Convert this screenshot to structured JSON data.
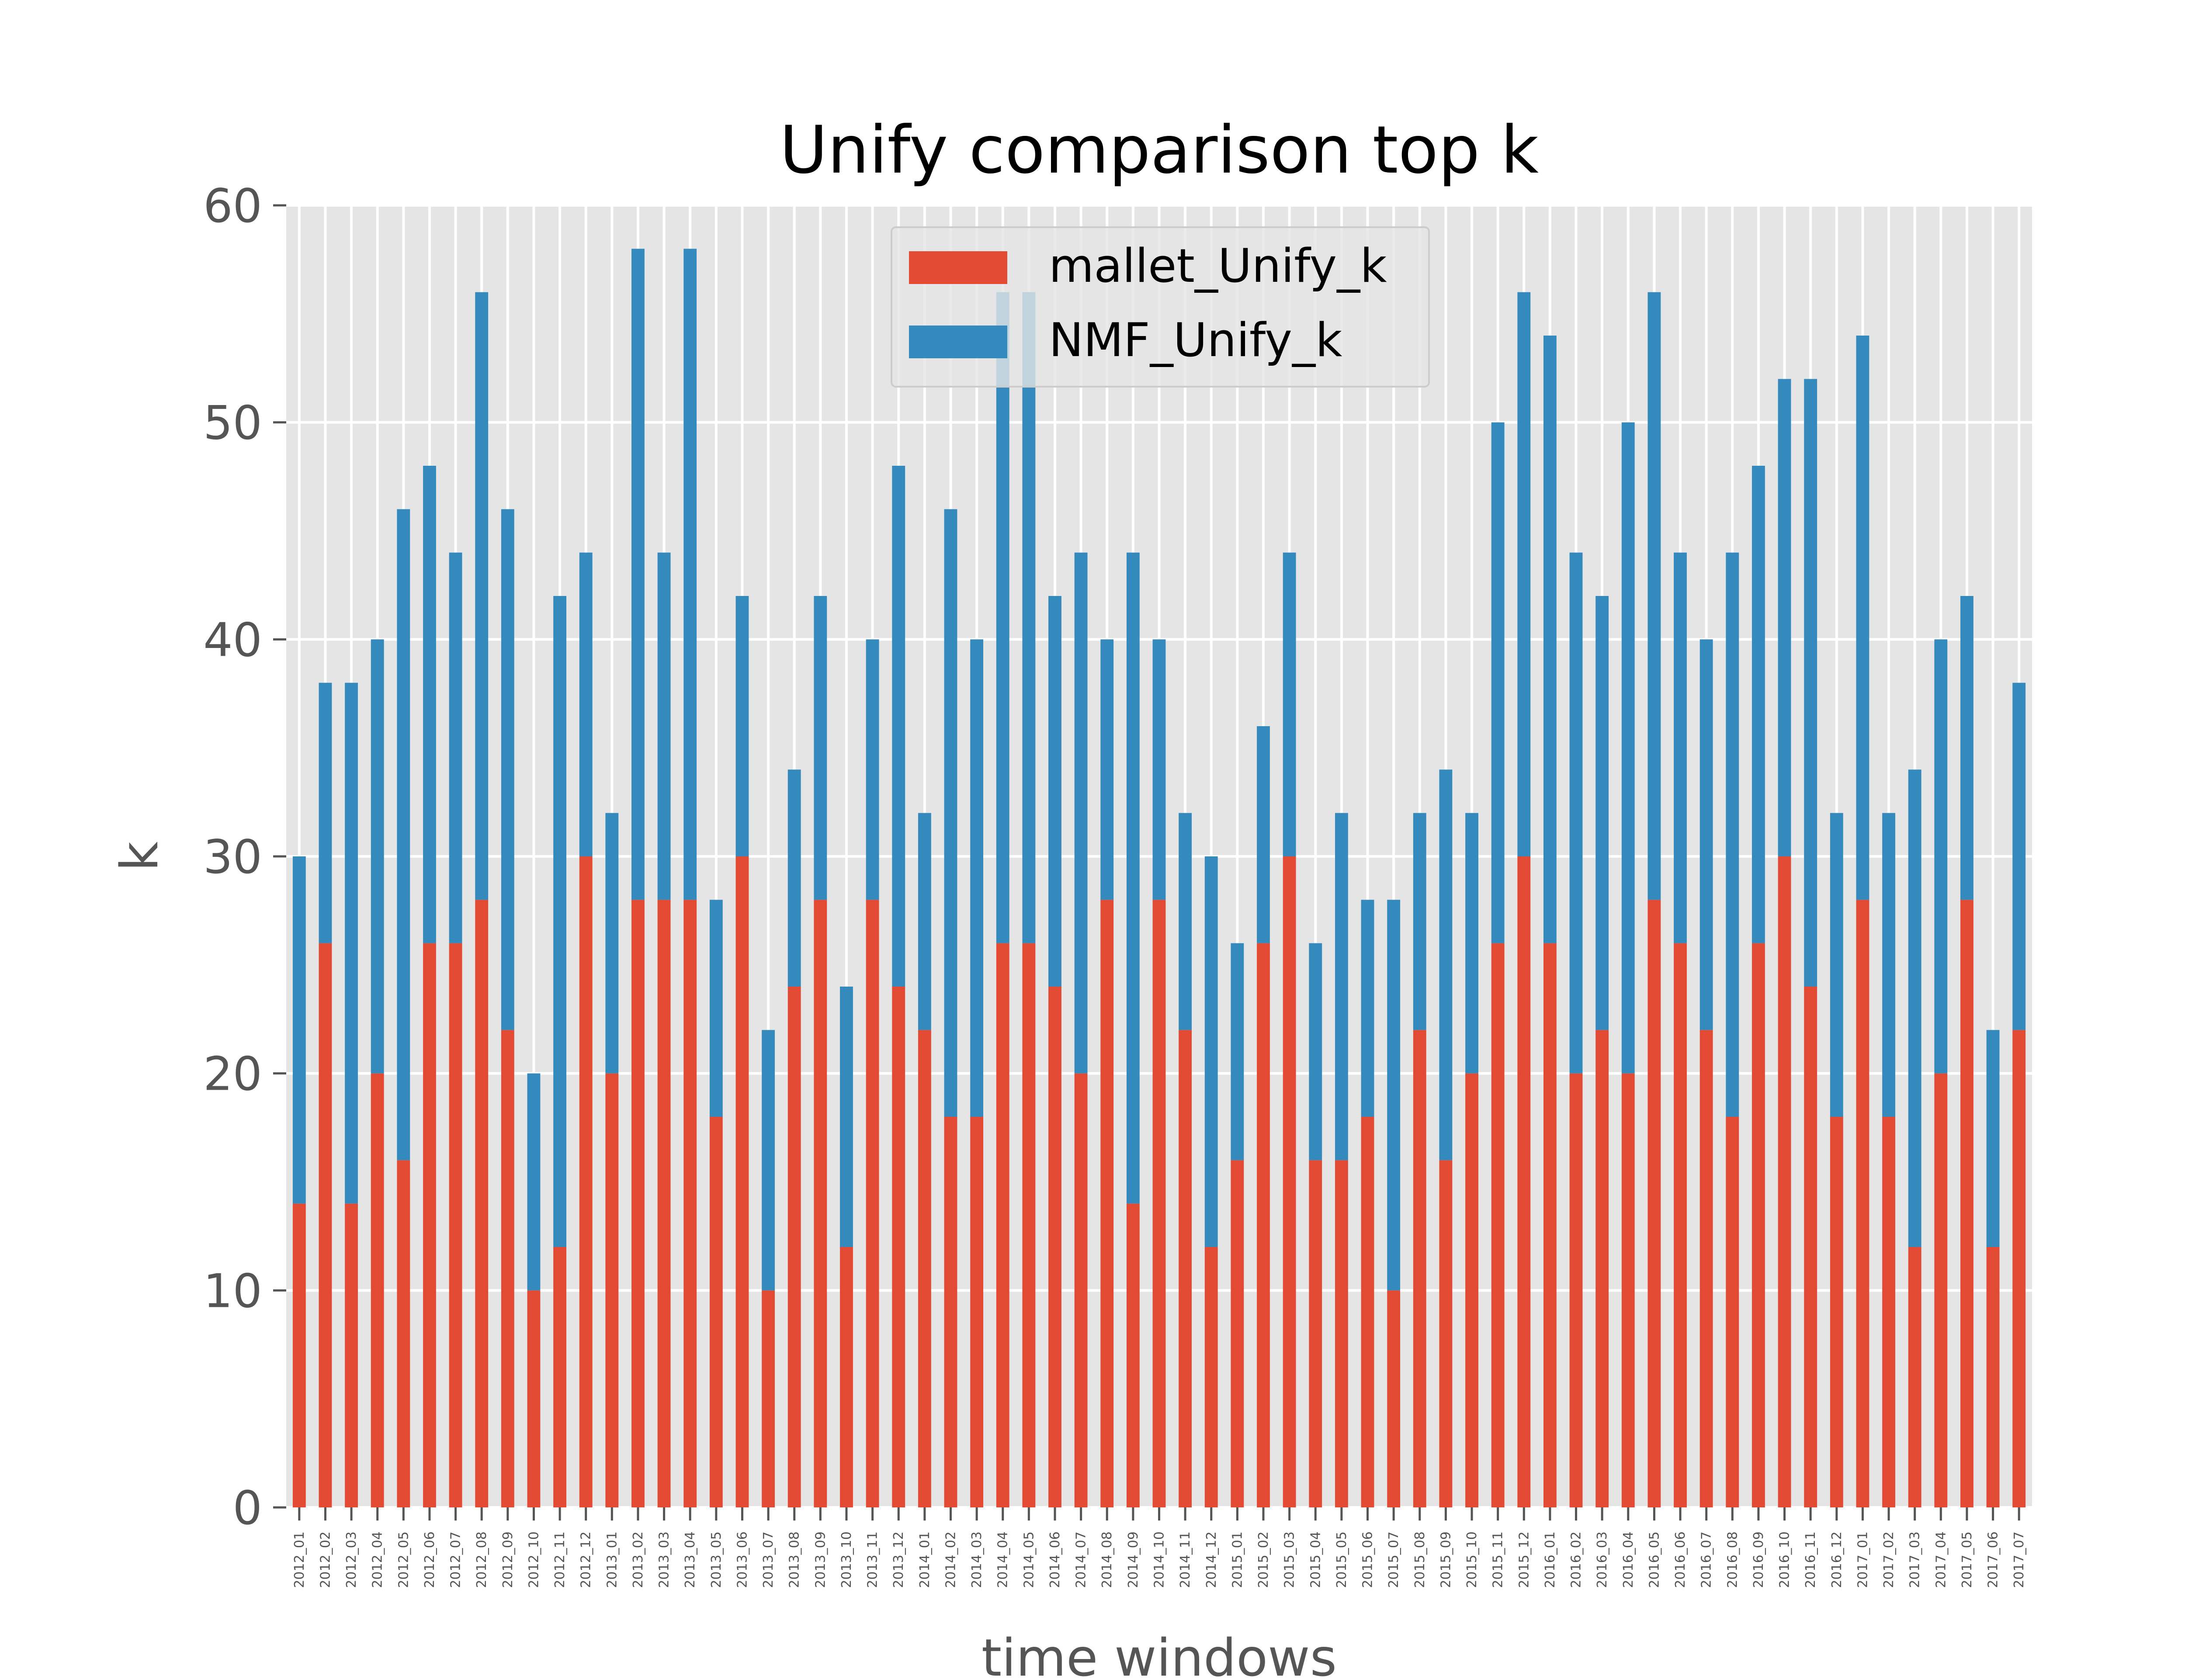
{
  "chart_data": {
    "type": "bar",
    "stacked": true,
    "title": "Unify comparison top k",
    "xlabel": "time windows",
    "ylabel": "k",
    "ylim": [
      0,
      60
    ],
    "yticks": [
      0,
      10,
      20,
      30,
      40,
      50,
      60
    ],
    "grid": true,
    "legend_position": "top-center",
    "categories": [
      "2012_01",
      "2012_02",
      "2012_03",
      "2012_04",
      "2012_05",
      "2012_06",
      "2012_07",
      "2012_08",
      "2012_09",
      "2012_10",
      "2012_11",
      "2012_12",
      "2013_01",
      "2013_02",
      "2013_03",
      "2013_04",
      "2013_05",
      "2013_06",
      "2013_07",
      "2013_08",
      "2013_09",
      "2013_10",
      "2013_11",
      "2013_12",
      "2014_01",
      "2014_02",
      "2014_03",
      "2014_04",
      "2014_05",
      "2014_06",
      "2014_07",
      "2014_08",
      "2014_09",
      "2014_10",
      "2014_11",
      "2014_12",
      "2015_01",
      "2015_02",
      "2015_03",
      "2015_04",
      "2015_05",
      "2015_06",
      "2015_07",
      "2015_08",
      "2015_09",
      "2015_10",
      "2015_11",
      "2015_12",
      "2016_01",
      "2016_02",
      "2016_03",
      "2016_04",
      "2016_05",
      "2016_06",
      "2016_07",
      "2016_08",
      "2016_09",
      "2016_10",
      "2016_11",
      "2016_12",
      "2017_01",
      "2017_02",
      "2017_03",
      "2017_04",
      "2017_05",
      "2017_06",
      "2017_07"
    ],
    "series": [
      {
        "name": "mallet_Unify_k",
        "color": "#E24A33",
        "values": [
          14,
          26,
          14,
          20,
          16,
          26,
          26,
          28,
          22,
          10,
          12,
          30,
          20,
          28,
          28,
          28,
          18,
          30,
          10,
          24,
          28,
          12,
          28,
          24,
          22,
          18,
          18,
          26,
          26,
          24,
          20,
          28,
          14,
          28,
          22,
          12,
          16,
          26,
          30,
          16,
          16,
          18,
          10,
          22,
          16,
          20,
          26,
          30,
          26,
          20,
          22,
          20,
          28,
          26,
          22,
          18,
          26,
          30,
          24,
          18,
          28,
          18,
          12,
          20,
          28,
          12,
          22
        ]
      },
      {
        "name": "NMF_Unify_k",
        "color": "#348ABD",
        "values": [
          16,
          12,
          24,
          20,
          30,
          22,
          18,
          28,
          24,
          10,
          30,
          14,
          12,
          30,
          16,
          30,
          10,
          12,
          12,
          10,
          14,
          12,
          12,
          24,
          10,
          28,
          22,
          30,
          30,
          18,
          24,
          12,
          30,
          12,
          10,
          18,
          10,
          10,
          14,
          10,
          16,
          10,
          18,
          10,
          18,
          12,
          24,
          26,
          28,
          24,
          20,
          30,
          28,
          18,
          18,
          26,
          22,
          22,
          28,
          14,
          26,
          14,
          22,
          20,
          14,
          10,
          16
        ]
      }
    ]
  }
}
